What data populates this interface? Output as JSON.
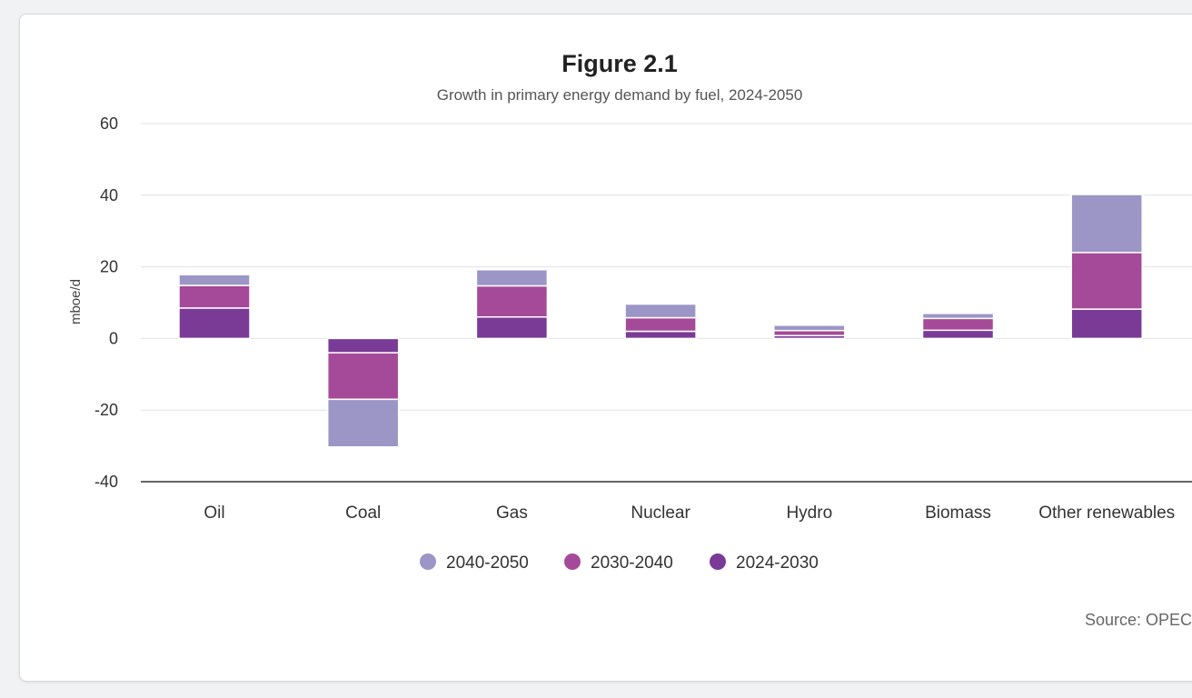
{
  "chart_data": {
    "type": "bar",
    "stacked": true,
    "title": "Figure 2.1",
    "subtitle": "Growth in primary energy demand by fuel, 2024-2050",
    "xlabel": "",
    "ylabel": "mboe/d",
    "ylim": [
      -40,
      60
    ],
    "yticks": [
      60,
      40,
      20,
      0,
      -20,
      -40
    ],
    "grid": true,
    "legend_position": "bottom",
    "categories": [
      "Oil",
      "Coal",
      "Gas",
      "Nuclear",
      "Hydro",
      "Biomass",
      "Other renewables"
    ],
    "series": [
      {
        "name": "2024-2030",
        "color": "#7a3b97",
        "values": [
          8.5,
          -4,
          6,
          2,
          0.8,
          2.3,
          8.2
        ]
      },
      {
        "name": "2030-2040",
        "color": "#a54a98",
        "values": [
          6.3,
          -13,
          8.7,
          3.8,
          1.4,
          3.3,
          15.8
        ]
      },
      {
        "name": "2040-2050",
        "color": "#9b96c6",
        "values": [
          3,
          -13.3,
          4.5,
          3.8,
          1.5,
          1.4,
          16.2
        ]
      }
    ],
    "legend_order": [
      "2040-2050",
      "2030-2040",
      "2024-2030"
    ],
    "source": "Source: OPEC"
  }
}
